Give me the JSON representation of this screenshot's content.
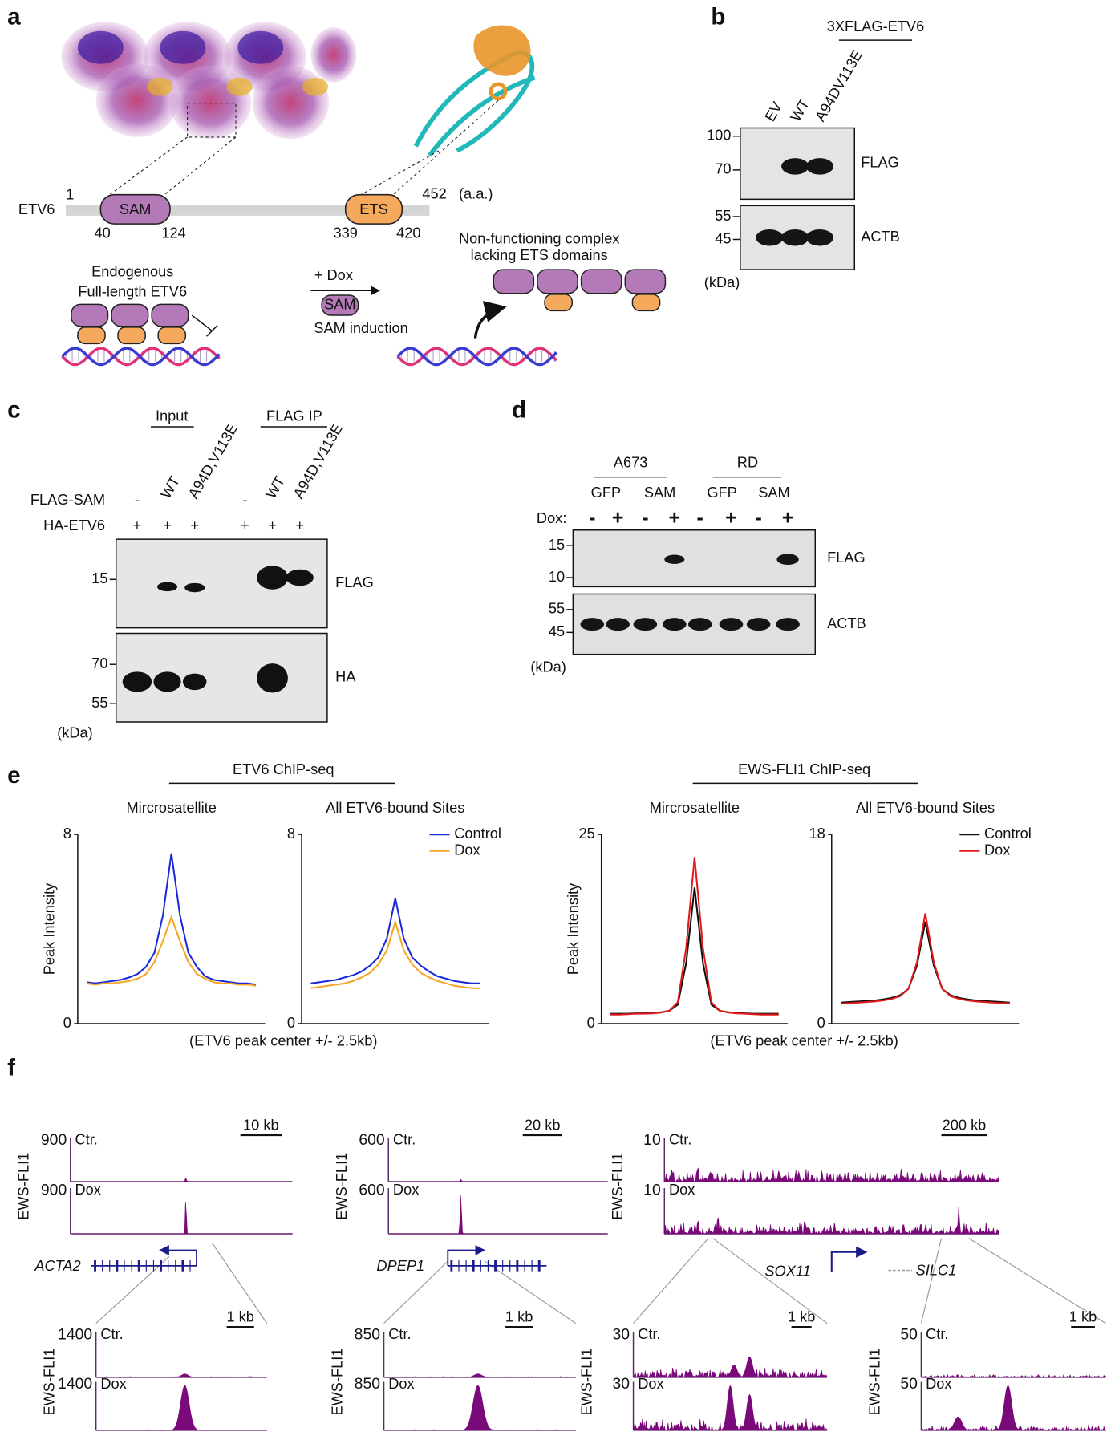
{
  "panels": {
    "a": {
      "label": "a",
      "protein": "ETV6",
      "start": "1",
      "end": "452",
      "unit": "(a.a.)",
      "domains": [
        {
          "name": "SAM",
          "start": "40",
          "end": "124"
        },
        {
          "name": "ETS",
          "start": "339",
          "end": "420"
        }
      ],
      "endogenous": [
        "Endogenous",
        "Full-length ETV6"
      ],
      "treatment": "+ Dox",
      "induced": "SAM",
      "induction": "SAM induction",
      "complex": [
        "Non-functioning complex",
        "lacking ETS domains"
      ]
    },
    "b": {
      "label": "b",
      "construct": "3XFLAG-ETV6",
      "lanes": [
        "EV",
        "WT",
        "A94DV113E"
      ],
      "blots": [
        {
          "name": "FLAG",
          "markers": [
            "100",
            "70"
          ]
        },
        {
          "name": "ACTB",
          "markers": [
            "55",
            "45"
          ]
        }
      ],
      "unit": "(kDa)"
    },
    "c": {
      "label": "c",
      "groups": [
        "Input",
        "FLAG IP"
      ],
      "rows": [
        {
          "label": "FLAG-SAM",
          "cells": [
            "-",
            "WT",
            "A94D,V113E",
            "-",
            "WT",
            "A94D,V113E"
          ]
        },
        {
          "label": "HA-ETV6",
          "cells": [
            "+",
            "+",
            "+",
            "+",
            "+",
            "+"
          ]
        }
      ],
      "blots": [
        {
          "name": "FLAG",
          "markers": [
            "15"
          ]
        },
        {
          "name": "HA",
          "markers": [
            "70",
            "55"
          ]
        }
      ],
      "unit": "(kDa)"
    },
    "d": {
      "label": "d",
      "cell_lines": [
        "A673",
        "RD"
      ],
      "constructs": [
        "GFP",
        "SAM",
        "GFP",
        "SAM"
      ],
      "dox_label": "Dox:",
      "dox": [
        "-",
        "+",
        "-",
        "+",
        "-",
        "+",
        "-",
        "+"
      ],
      "blots": [
        {
          "name": "FLAG",
          "markers": [
            "15",
            "10"
          ]
        },
        {
          "name": "ACTB",
          "markers": [
            "55",
            "45"
          ]
        }
      ],
      "unit": "(kDa)"
    },
    "e": {
      "label": "e",
      "groups": [
        {
          "title": "ETV6 ChIP-seq",
          "xlabel": "(ETV6 peak center +/- 2.5kb)",
          "ylabel": "Peak Intensity"
        },
        {
          "title": "EWS-FLI1 ChIP-seq",
          "xlabel": "(ETV6 peak center +/- 2.5kb)",
          "ylabel": "Peak Intensity"
        }
      ],
      "charts": [
        {
          "type": "line",
          "subtitle": "Mircrosatellite",
          "ylim": [
            0,
            8
          ],
          "yticks": [
            0,
            8
          ],
          "series": [
            {
              "color": "#1a2ad8",
              "values": [
                1.75,
                1.7,
                1.75,
                1.8,
                1.85,
                1.95,
                2.1,
                2.4,
                3.0,
                4.6,
                7.2,
                4.6,
                3.0,
                2.4,
                2.0,
                1.85,
                1.8,
                1.75,
                1.7,
                1.7,
                1.65
              ]
            },
            {
              "color": "#f5a623",
              "values": [
                1.7,
                1.65,
                1.7,
                1.7,
                1.75,
                1.8,
                1.9,
                2.1,
                2.6,
                3.5,
                4.5,
                3.5,
                2.6,
                2.1,
                1.9,
                1.75,
                1.7,
                1.7,
                1.65,
                1.65,
                1.6
              ]
            }
          ]
        },
        {
          "type": "line",
          "subtitle": "All ETV6-bound Sites",
          "ylim": [
            0,
            8
          ],
          "yticks": [
            0,
            8
          ],
          "legend": "upper right",
          "series": [
            {
              "name": "Control",
              "color": "#1a2ad8",
              "values": [
                1.7,
                1.75,
                1.8,
                1.85,
                1.95,
                2.05,
                2.2,
                2.45,
                2.8,
                3.6,
                5.3,
                3.6,
                2.8,
                2.45,
                2.2,
                2.0,
                1.9,
                1.8,
                1.75,
                1.7,
                1.7
              ]
            },
            {
              "name": "Dox",
              "color": "#f5a623",
              "values": [
                1.5,
                1.55,
                1.6,
                1.65,
                1.7,
                1.8,
                1.95,
                2.15,
                2.5,
                3.1,
                4.3,
                3.1,
                2.5,
                2.15,
                1.95,
                1.8,
                1.7,
                1.6,
                1.55,
                1.5,
                1.5
              ]
            }
          ]
        },
        {
          "type": "line",
          "subtitle": "Mircrosatellite",
          "ylim": [
            0,
            25
          ],
          "yticks": [
            0,
            25
          ],
          "series": [
            {
              "color": "#111111",
              "values": [
                1.3,
                1.3,
                1.3,
                1.35,
                1.35,
                1.4,
                1.5,
                1.7,
                2.5,
                8,
                18,
                8,
                2.5,
                1.7,
                1.5,
                1.4,
                1.35,
                1.3,
                1.3,
                1.3,
                1.3
              ]
            },
            {
              "color": "#e0191c",
              "values": [
                1.2,
                1.2,
                1.25,
                1.3,
                1.3,
                1.35,
                1.45,
                1.7,
                2.8,
                10,
                22,
                10,
                2.8,
                1.7,
                1.45,
                1.35,
                1.3,
                1.25,
                1.2,
                1.2,
                1.2
              ]
            }
          ]
        },
        {
          "type": "line",
          "subtitle": "All ETV6-bound Sites",
          "ylim": [
            0,
            18
          ],
          "yticks": [
            0,
            18
          ],
          "legend": "upper right",
          "series": [
            {
              "name": "Control",
              "color": "#111111",
              "values": [
                2.0,
                2.05,
                2.1,
                2.15,
                2.2,
                2.3,
                2.45,
                2.7,
                3.3,
                5.5,
                9.7,
                5.5,
                3.3,
                2.7,
                2.45,
                2.3,
                2.2,
                2.15,
                2.1,
                2.05,
                2.0
              ]
            },
            {
              "name": "Dox",
              "color": "#e0191c",
              "values": [
                1.9,
                1.95,
                2.0,
                2.05,
                2.1,
                2.2,
                2.35,
                2.6,
                3.3,
                5.8,
                10.5,
                5.8,
                3.3,
                2.6,
                2.35,
                2.2,
                2.1,
                2.05,
                2.0,
                1.95,
                1.95
              ]
            }
          ]
        }
      ]
    },
    "f": {
      "label": "f",
      "ylabel": "EWS-FLI1",
      "loci": [
        {
          "scale": "10 kb",
          "tracks": [
            {
              "name": "Ctr.",
              "max": "900"
            },
            {
              "name": "Dox",
              "max": "900"
            }
          ],
          "genes": [
            "ACTA2"
          ],
          "zooms": [
            {
              "scale": "1 kb",
              "tracks": [
                {
                  "name": "Ctr.",
                  "max": "1400"
                },
                {
                  "name": "Dox",
                  "max": "1400"
                }
              ]
            }
          ]
        },
        {
          "scale": "20 kb",
          "tracks": [
            {
              "name": "Ctr.",
              "max": "600"
            },
            {
              "name": "Dox",
              "max": "600"
            }
          ],
          "genes": [
            "DPEP1"
          ],
          "zooms": [
            {
              "scale": "1 kb",
              "tracks": [
                {
                  "name": "Ctr.",
                  "max": "850"
                },
                {
                  "name": "Dox",
                  "max": "850"
                }
              ]
            }
          ]
        },
        {
          "scale": "200 kb",
          "tracks": [
            {
              "name": "Ctr.",
              "max": "10"
            },
            {
              "name": "Dox",
              "max": "10"
            }
          ],
          "genes": [
            "SOX11",
            "SILC1"
          ],
          "zooms": [
            {
              "scale": "1 kb",
              "tracks": [
                {
                  "name": "Ctr.",
                  "max": "30"
                },
                {
                  "name": "Dox",
                  "max": "30"
                }
              ]
            },
            {
              "scale": "1 kb",
              "tracks": [
                {
                  "name": "Ctr.",
                  "max": "50"
                },
                {
                  "name": "Dox",
                  "max": "50"
                }
              ]
            }
          ]
        }
      ]
    }
  }
}
